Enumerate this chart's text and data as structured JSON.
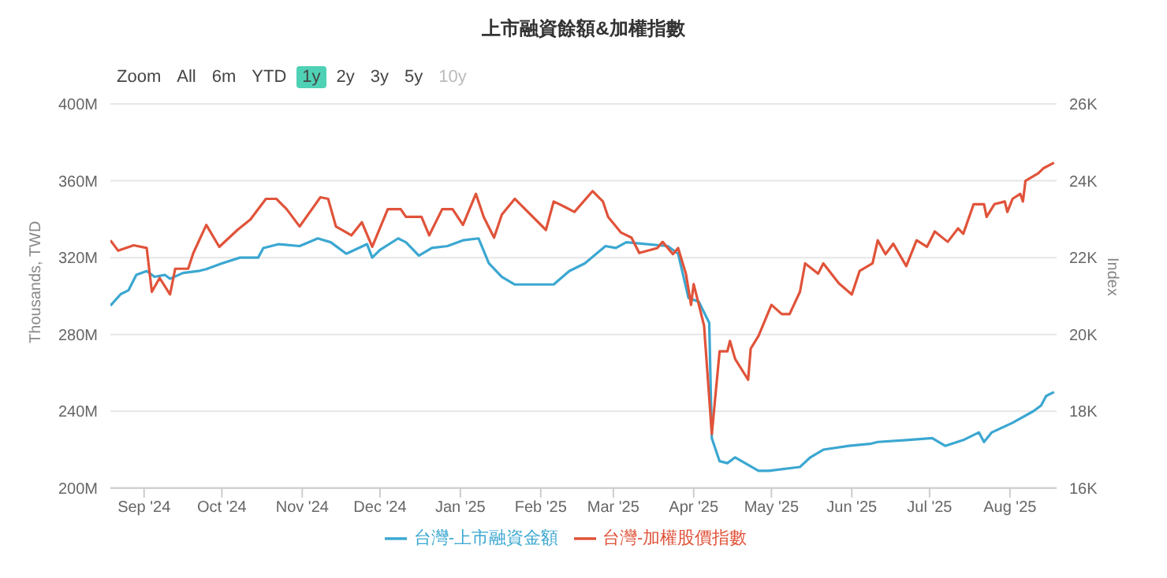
{
  "chart_data": {
    "type": "line",
    "title": "上市融資餘額&加權指數",
    "ylabel": "Thousands, TWD",
    "y2label": "Index",
    "annotations": [
      "Zoom",
      "All",
      "6m",
      "YTD",
      "1y",
      "2y",
      "3y",
      "5y",
      "10y"
    ],
    "xlim": [
      "2024-08-19",
      "2025-08-19"
    ],
    "xticks": [
      {
        "value": "2024-09-01",
        "label": "Sep '24"
      },
      {
        "value": "2024-10-01",
        "label": "Oct '24"
      },
      {
        "value": "2024-11-01",
        "label": "Nov '24"
      },
      {
        "value": "2024-12-01",
        "label": "Dec '24"
      },
      {
        "value": "2025-01-01",
        "label": "Jan '25"
      },
      {
        "value": "2025-02-01",
        "label": "Feb '25"
      },
      {
        "value": "2025-03-01",
        "label": "Mar '25"
      },
      {
        "value": "2025-04-01",
        "label": "Apr '25"
      },
      {
        "value": "2025-05-01",
        "label": "May '25"
      },
      {
        "value": "2025-06-01",
        "label": "Jun '25"
      },
      {
        "value": "2025-07-01",
        "label": "Jul '25"
      },
      {
        "value": "2025-08-01",
        "label": "Aug '25"
      }
    ],
    "ylim": [
      200,
      400
    ],
    "yticks": [
      {
        "value": 200,
        "label": "200M"
      },
      {
        "value": 240,
        "label": "240M"
      },
      {
        "value": 280,
        "label": "280M"
      },
      {
        "value": 320,
        "label": "320M"
      },
      {
        "value": 360,
        "label": "360M"
      },
      {
        "value": 400,
        "label": "400M"
      }
    ],
    "y2lim": [
      16000,
      26000
    ],
    "y2ticks": [
      {
        "value": 16000,
        "label": "16K"
      },
      {
        "value": 18000,
        "label": "18K"
      },
      {
        "value": 20000,
        "label": "20K"
      },
      {
        "value": 22000,
        "label": "22K"
      },
      {
        "value": 24000,
        "label": "24K"
      },
      {
        "value": 26000,
        "label": "26K"
      }
    ],
    "grid": "y",
    "legend": "bottom",
    "marker": "none",
    "line_style": "solid",
    "series": [
      {
        "name": "台灣-上市融資金額",
        "color": "#3ba7d1",
        "x": [
          "2024-08-19",
          "2024-08-23",
          "2024-08-26",
          "2024-08-29",
          "2024-09-02",
          "2024-09-05",
          "2024-09-09",
          "2024-09-11",
          "2024-09-16",
          "2024-09-22",
          "2024-09-25",
          "2024-10-01",
          "2024-10-08",
          "2024-10-15",
          "2024-10-17",
          "2024-10-23",
          "2024-10-31",
          "2024-11-07",
          "2024-11-12",
          "2024-11-18",
          "2024-11-26",
          "2024-11-28",
          "2024-12-01",
          "2024-12-08",
          "2024-12-11",
          "2024-12-16",
          "2024-12-21",
          "2024-12-27",
          "2025-01-02",
          "2025-01-08",
          "2025-01-12",
          "2025-01-17",
          "2025-01-22",
          "2025-02-06",
          "2025-02-12",
          "2025-02-18",
          "2025-02-26",
          "2025-03-02",
          "2025-03-06",
          "2025-03-22",
          "2025-03-26",
          "2025-03-30",
          "2025-04-03",
          "2025-04-07",
          "2025-04-08",
          "2025-04-11",
          "2025-04-14",
          "2025-04-17",
          "2025-04-26",
          "2025-04-30",
          "2025-05-12",
          "2025-05-16",
          "2025-05-21",
          "2025-05-31",
          "2025-06-08",
          "2025-06-11",
          "2025-06-22",
          "2025-07-02",
          "2025-07-07",
          "2025-07-14",
          "2025-07-20",
          "2025-07-22",
          "2025-07-25",
          "2025-08-02",
          "2025-08-10",
          "2025-08-13",
          "2025-08-15",
          "2025-08-18"
        ],
        "values": [
          295,
          301,
          303,
          311,
          313,
          310,
          311,
          309,
          312,
          313,
          314,
          317,
          320,
          320,
          325,
          327,
          326,
          330,
          328,
          322,
          327,
          320,
          324,
          330,
          328,
          321,
          325,
          326,
          329,
          330,
          317,
          310,
          306,
          306,
          313,
          317,
          326,
          325,
          328,
          326,
          322,
          299,
          297,
          286,
          226,
          214,
          213,
          216,
          209,
          209,
          211,
          216,
          220,
          222,
          223,
          224,
          225,
          226,
          222,
          225,
          229,
          224,
          229,
          234,
          240,
          243,
          248,
          250
        ]
      },
      {
        "name": "台灣-加權股價指數",
        "color": "#e0533a",
        "axis": "y2",
        "x": [
          "2024-08-19",
          "2024-08-22",
          "2024-08-28",
          "2024-09-02",
          "2024-09-04",
          "2024-09-07",
          "2024-09-11",
          "2024-09-13",
          "2024-09-18",
          "2024-09-20",
          "2024-09-25",
          "2024-09-30",
          "2024-10-07",
          "2024-10-12",
          "2024-10-18",
          "2024-10-22",
          "2024-10-26",
          "2024-10-31",
          "2024-11-08",
          "2024-11-11",
          "2024-11-14",
          "2024-11-20",
          "2024-11-24",
          "2024-11-28",
          "2024-12-04",
          "2024-12-09",
          "2024-12-11",
          "2024-12-17",
          "2024-12-20",
          "2024-12-25",
          "2024-12-29",
          "2025-01-02",
          "2025-01-07",
          "2025-01-10",
          "2025-01-14",
          "2025-01-17",
          "2025-01-22",
          "2025-02-03",
          "2025-02-06",
          "2025-02-10",
          "2025-02-14",
          "2025-02-21",
          "2025-02-25",
          "2025-02-27",
          "2025-03-04",
          "2025-03-08",
          "2025-03-11",
          "2025-03-18",
          "2025-03-20",
          "2025-03-24",
          "2025-03-26",
          "2025-03-29",
          "2025-03-31",
          "2025-04-01",
          "2025-04-05",
          "2025-04-08",
          "2025-04-11",
          "2025-04-14",
          "2025-04-15",
          "2025-04-17",
          "2025-04-22",
          "2025-04-23",
          "2025-04-26",
          "2025-05-01",
          "2025-05-05",
          "2025-05-08",
          "2025-05-12",
          "2025-05-14",
          "2025-05-19",
          "2025-05-21",
          "2025-05-27",
          "2025-06-01",
          "2025-06-04",
          "2025-06-09",
          "2025-06-11",
          "2025-06-14",
          "2025-06-17",
          "2025-06-22",
          "2025-06-26",
          "2025-06-30",
          "2025-07-03",
          "2025-07-08",
          "2025-07-12",
          "2025-07-14",
          "2025-07-18",
          "2025-07-22",
          "2025-07-23",
          "2025-07-26",
          "2025-07-30",
          "2025-07-31",
          "2025-08-02",
          "2025-08-05",
          "2025-08-06",
          "2025-08-07",
          "2025-08-12",
          "2025-08-14",
          "2025-08-18"
        ],
        "values": [
          22450,
          22180,
          22320,
          22250,
          21110,
          21470,
          21040,
          21710,
          21710,
          22120,
          22850,
          22280,
          22720,
          22990,
          23530,
          23530,
          23260,
          22810,
          23570,
          23530,
          22810,
          22580,
          22920,
          22280,
          23260,
          23260,
          23060,
          23060,
          22580,
          23260,
          23260,
          22850,
          23660,
          23060,
          22520,
          23120,
          23530,
          22720,
          23460,
          23330,
          23190,
          23730,
          23460,
          23060,
          22650,
          22520,
          22120,
          22250,
          22410,
          22090,
          22250,
          21580,
          20770,
          21310,
          20230,
          17410,
          19560,
          19560,
          19830,
          19360,
          18820,
          19630,
          19960,
          20770,
          20530,
          20530,
          21110,
          21850,
          21580,
          21850,
          21330,
          21040,
          21650,
          21850,
          22450,
          22090,
          22360,
          21780,
          22450,
          22280,
          22680,
          22410,
          22760,
          22620,
          23390,
          23390,
          23060,
          23390,
          23460,
          23190,
          23530,
          23660,
          23460,
          24000,
          24200,
          24330,
          24470
        ]
      }
    ]
  }
}
